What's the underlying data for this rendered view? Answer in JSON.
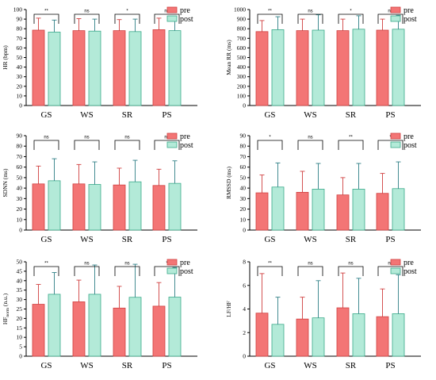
{
  "legend": {
    "pre": "pre",
    "post": "post"
  },
  "colors": {
    "pre": "#f37575",
    "pre_edge": "#d04040",
    "post": "#b3ead8",
    "post_edge": "#3aaa8a",
    "post_err": "#2f7f86"
  },
  "chart_data": [
    {
      "type": "bar",
      "ylabel": "HR (bpm)",
      "categories": [
        "GS",
        "WS",
        "SR",
        "PS"
      ],
      "ylim": [
        0,
        100
      ],
      "yticks": [
        0,
        10,
        20,
        30,
        40,
        50,
        60,
        70,
        80,
        90,
        100
      ],
      "series": [
        {
          "name": "pre",
          "values": [
            78.5,
            78.0,
            78.0,
            79.0
          ],
          "errors": [
            12.5,
            12.5,
            11.5,
            12.0
          ]
        },
        {
          "name": "post",
          "values": [
            76.5,
            77.5,
            77.0,
            78.0
          ],
          "errors": [
            12.5,
            12.5,
            13.0,
            14.0
          ]
        }
      ],
      "significance": [
        "**",
        "ns",
        "*",
        "ns"
      ]
    },
    {
      "type": "bar",
      "ylabel": "Mean RR (ms)",
      "categories": [
        "GS",
        "WS",
        "SR",
        "PS"
      ],
      "ylim": [
        0,
        1000
      ],
      "yticks": [
        0,
        100,
        200,
        300,
        400,
        500,
        600,
        700,
        800,
        900,
        1000
      ],
      "series": [
        {
          "name": "pre",
          "values": [
            770,
            780,
            780,
            785
          ],
          "errors": [
            115,
            120,
            120,
            115
          ]
        },
        {
          "name": "post",
          "values": [
            790,
            785,
            795,
            795
          ],
          "errors": [
            135,
            160,
            140,
            145
          ]
        }
      ],
      "significance": [
        "**",
        "ns",
        "*",
        "ns"
      ]
    },
    {
      "type": "bar",
      "ylabel": "SDNN (ms)",
      "categories": [
        "GS",
        "WS",
        "SR",
        "PS"
      ],
      "ylim": [
        0,
        90
      ],
      "yticks": [
        0,
        10,
        20,
        30,
        40,
        50,
        60,
        70,
        80,
        90
      ],
      "series": [
        {
          "name": "pre",
          "values": [
            44,
            44,
            43,
            42.5
          ],
          "errors": [
            17,
            18.5,
            16,
            15.5
          ]
        },
        {
          "name": "post",
          "values": [
            47,
            43.5,
            46,
            44.5
          ],
          "errors": [
            21,
            21.5,
            20.5,
            21.5
          ]
        }
      ],
      "significance": [
        "ns",
        "ns",
        "ns",
        "ns"
      ]
    },
    {
      "type": "bar",
      "ylabel": "RMSSD (ms)",
      "categories": [
        "GS",
        "WS",
        "SR",
        "PS"
      ],
      "ylim": [
        0,
        90
      ],
      "yticks": [
        0,
        10,
        20,
        30,
        40,
        50,
        60,
        70,
        80,
        90
      ],
      "series": [
        {
          "name": "pre",
          "values": [
            35.5,
            36,
            33.5,
            35
          ],
          "errors": [
            17,
            20,
            16.5,
            19
          ]
        },
        {
          "name": "post",
          "values": [
            41,
            39,
            39,
            39.5
          ],
          "errors": [
            23,
            24.5,
            24.5,
            25.5
          ]
        }
      ],
      "significance": [
        "*",
        "ns",
        "**",
        "*"
      ]
    },
    {
      "type": "bar",
      "ylabel": "HFnorm (n.u.)",
      "ylabel_main": "HF",
      "ylabel_sub": "norm",
      "ylabel_rest": " (n.u.)",
      "categories": [
        "GS",
        "WS",
        "SR",
        "PS"
      ],
      "ylim": [
        0,
        50
      ],
      "yticks": [
        0,
        5,
        10,
        15,
        20,
        25,
        30,
        35,
        40,
        45,
        50
      ],
      "series": [
        {
          "name": "pre",
          "values": [
            27.5,
            28.8,
            25.5,
            26.5
          ],
          "errors": [
            10.5,
            11.5,
            11.5,
            12.5
          ]
        },
        {
          "name": "post",
          "values": [
            32.8,
            32.8,
            31.2,
            31.3
          ],
          "errors": [
            11.5,
            15.5,
            17.5,
            15.7
          ]
        }
      ],
      "significance": [
        "**",
        "ns",
        "ns",
        "*"
      ]
    },
    {
      "type": "bar",
      "ylabel": "LF/HF",
      "categories": [
        "GS",
        "WS",
        "SR",
        "PS"
      ],
      "ylim": [
        0,
        8
      ],
      "yticks": [
        0,
        2,
        4,
        6,
        8
      ],
      "series": [
        {
          "name": "pre",
          "values": [
            3.65,
            3.15,
            4.1,
            3.35
          ],
          "errors": [
            3.35,
            1.85,
            2.95,
            2.35
          ]
        },
        {
          "name": "post",
          "values": [
            2.7,
            3.25,
            3.6,
            3.6
          ],
          "errors": [
            2.3,
            3.15,
            3.0,
            3.3
          ]
        }
      ],
      "significance": [
        "**",
        "ns",
        "ns",
        "ns"
      ]
    }
  ]
}
